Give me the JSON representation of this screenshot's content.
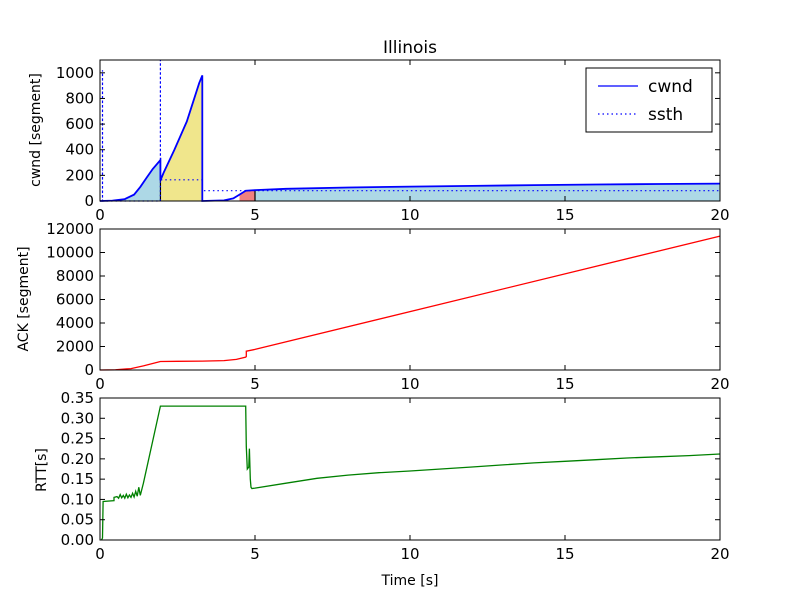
{
  "chart_data": [
    {
      "type": "area",
      "title": "Illinois",
      "xlabel": "",
      "ylabel": "cwnd [segment]",
      "xlim": [
        0,
        20
      ],
      "ylim": [
        0,
        1100
      ],
      "xticks": [
        0,
        5,
        10,
        15,
        20
      ],
      "yticks": [
        0,
        200,
        400,
        600,
        800,
        1000
      ],
      "grid": false,
      "legend": {
        "position": "top-right",
        "entries": [
          "cwnd",
          "ssth"
        ]
      },
      "series": [
        {
          "name": "cwnd",
          "style": "solid",
          "color": "#0000ff",
          "x": [
            0,
            0.4,
            0.8,
            1.1,
            1.3,
            1.5,
            1.7,
            1.95,
            1.95,
            2.05,
            2.4,
            2.8,
            3.2,
            3.3,
            3.3,
            4.0,
            4.3,
            4.5,
            4.7,
            5.0,
            6,
            8,
            10,
            12,
            14,
            16,
            18,
            20
          ],
          "y": [
            0,
            3,
            15,
            50,
            110,
            180,
            250,
            320,
            160,
            220,
            400,
            620,
            920,
            980,
            0,
            5,
            20,
            50,
            80,
            85,
            95,
            105,
            112,
            118,
            124,
            129,
            133,
            136
          ]
        },
        {
          "name": "ssth",
          "style": "dotted",
          "color": "#0000ff",
          "x": [
            0.08,
            0.08,
            0.08,
            1.95,
            1.95,
            1.95,
            3.3,
            3.3,
            5.0,
            10,
            15,
            20
          ],
          "y": [
            0,
            1020,
            0,
            0,
            1100,
            165,
            165,
            80,
            80,
            80,
            80,
            80
          ]
        }
      ],
      "fill_segments": [
        {
          "x0": 0,
          "x1": 1.95,
          "color": "#add8e6"
        },
        {
          "x0": 1.95,
          "x1": 3.3,
          "color": "#f0e68c"
        },
        {
          "x0": 4.5,
          "x1": 5.0,
          "color": "#f08080"
        },
        {
          "x0": 5.0,
          "x1": 20,
          "color": "#add8e6"
        }
      ],
      "segment_borders_x": [
        1.95,
        3.3,
        5.0
      ]
    },
    {
      "type": "line",
      "title": "",
      "xlabel": "",
      "ylabel": "ACK [segment]",
      "xlim": [
        0,
        20
      ],
      "ylim": [
        0,
        12000
      ],
      "xticks": [
        0,
        5,
        10,
        15,
        20
      ],
      "yticks": [
        0,
        2000,
        4000,
        6000,
        8000,
        10000,
        12000
      ],
      "grid": false,
      "series": [
        {
          "name": "",
          "color": "#ff0000",
          "x": [
            0,
            0.5,
            1.0,
            1.4,
            1.95,
            2.5,
            3.3,
            4.0,
            4.4,
            4.7,
            4.72,
            4.72,
            5.0,
            20
          ],
          "y": [
            0,
            20,
            120,
            350,
            720,
            740,
            760,
            800,
            900,
            1100,
            1150,
            1600,
            1750,
            11400
          ]
        }
      ]
    },
    {
      "type": "line",
      "title": "",
      "xlabel": "Time [s]",
      "ylabel": "RTT[s]",
      "xlim": [
        0,
        20
      ],
      "ylim": [
        0,
        0.35
      ],
      "xticks": [
        0,
        5,
        10,
        15,
        20
      ],
      "yticks": [
        0.0,
        0.05,
        0.1,
        0.15,
        0.2,
        0.25,
        0.3,
        0.35
      ],
      "ytick_labels": [
        "0.00",
        "0.05",
        "0.10",
        "0.15",
        "0.20",
        "0.25",
        "0.30",
        "0.35"
      ],
      "grid": false,
      "series": [
        {
          "name": "",
          "color": "#008000",
          "x": [
            0.05,
            0.08,
            0.1,
            0.1,
            0.45,
            0.45,
            0.55,
            0.6,
            0.65,
            0.7,
            0.75,
            0.8,
            0.85,
            0.9,
            0.95,
            1.0,
            1.05,
            1.1,
            1.15,
            1.2,
            1.25,
            1.3,
            1.4,
            1.95,
            4.7,
            4.72,
            4.75,
            4.8,
            4.82,
            4.85,
            4.87,
            4.9,
            5.0,
            6,
            7,
            8,
            9,
            10,
            11,
            12,
            13,
            14,
            15,
            16,
            17,
            18,
            19,
            20
          ],
          "y": [
            0.0,
            0.005,
            0.095,
            0.095,
            0.097,
            0.105,
            0.107,
            0.103,
            0.112,
            0.104,
            0.11,
            0.103,
            0.113,
            0.104,
            0.111,
            0.105,
            0.115,
            0.106,
            0.12,
            0.108,
            0.13,
            0.11,
            0.14,
            0.33,
            0.33,
            0.23,
            0.175,
            0.18,
            0.225,
            0.15,
            0.13,
            0.127,
            0.128,
            0.14,
            0.152,
            0.16,
            0.166,
            0.17,
            0.175,
            0.18,
            0.185,
            0.19,
            0.194,
            0.198,
            0.202,
            0.205,
            0.208,
            0.212
          ]
        }
      ]
    }
  ]
}
